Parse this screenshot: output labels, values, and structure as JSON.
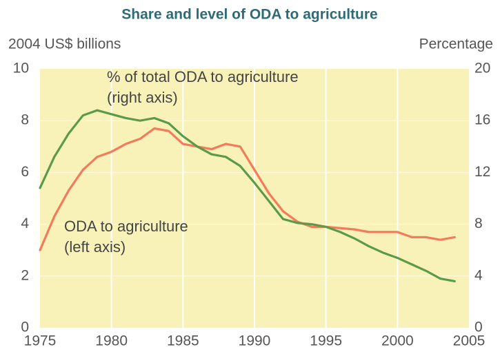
{
  "chart_data": {
    "type": "line",
    "title": "Share and level of ODA to agriculture",
    "y_label": "2004 US$ billions",
    "y2_label": "Percentage",
    "x": [
      1975,
      1976,
      1977,
      1978,
      1979,
      1980,
      1981,
      1982,
      1983,
      1984,
      1985,
      1986,
      1987,
      1988,
      1989,
      1990,
      1991,
      1992,
      1993,
      1994,
      1995,
      1996,
      1997,
      1998,
      1999,
      2000,
      2001,
      2002,
      2003,
      2004
    ],
    "series": [
      {
        "name": "ODA to agriculture",
        "color": "#f47a5c",
        "axis": "y",
        "values": [
          3.0,
          4.3,
          5.3,
          6.1,
          6.6,
          6.8,
          7.1,
          7.3,
          7.7,
          7.6,
          7.1,
          7.0,
          6.9,
          7.1,
          7.0,
          6.1,
          5.2,
          4.5,
          4.1,
          3.9,
          3.9,
          3.85,
          3.8,
          3.7,
          3.7,
          3.7,
          3.5,
          3.5,
          3.4,
          3.5
        ]
      },
      {
        "name": "% of total ODA to agriculture",
        "color": "#5a9a48",
        "axis": "y2",
        "values": [
          10.8,
          13.2,
          15.0,
          16.4,
          16.8,
          16.5,
          16.2,
          16.0,
          16.2,
          15.8,
          14.8,
          14.0,
          13.4,
          13.2,
          12.5,
          11.2,
          9.8,
          8.4,
          8.1,
          8.0,
          7.8,
          7.4,
          6.9,
          6.3,
          5.8,
          5.4,
          4.9,
          4.4,
          3.8,
          3.6
        ]
      }
    ],
    "annotations": [
      {
        "lines": [
          "% of total ODA to agriculture",
          "(right axis)"
        ]
      },
      {
        "lines": [
          "ODA to agriculture",
          "(left axis)"
        ]
      }
    ],
    "xlim": [
      1975,
      2005
    ],
    "xticks": [
      1975,
      1980,
      1985,
      1990,
      1995,
      2000,
      2005
    ],
    "ylim": [
      0,
      10
    ],
    "yticks": [
      0,
      2,
      4,
      6,
      8,
      10
    ],
    "y2lim": [
      0,
      20
    ],
    "y2ticks": [
      0,
      4,
      8,
      12,
      16,
      20
    ],
    "grid": true
  }
}
